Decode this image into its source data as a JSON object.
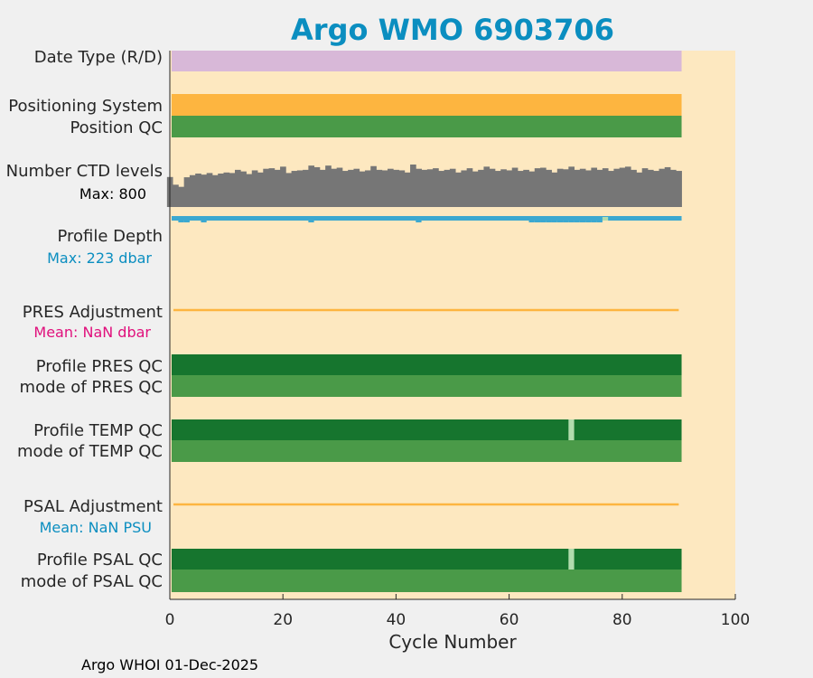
{
  "chart_data": {
    "type": "bar",
    "title": "Argo WMO 6903706",
    "xlabel": "Cycle Number",
    "xlim": [
      0,
      100
    ],
    "xticks": [
      "0",
      "20",
      "40",
      "60",
      "80",
      "100"
    ],
    "last_cycle": 90,
    "footer": "Argo WHOI 01-Dec-2025",
    "colors": {
      "background": "#f0f0f0",
      "panel": "#fde8c0",
      "title": "#0b8ec0",
      "date_type": "#d8b8d8",
      "positioning_system": "#fdb540",
      "qc_good": "#4a9a48",
      "qc_dark": "#16752e",
      "qc_gap": "#b2dcae",
      "ctd_bars": "#767676",
      "profile_depth": "#3ca8d0",
      "adjustment_line": "#fdb540",
      "pres_mean_text": "#e0107c",
      "depth_max_text": "#0b8ec0",
      "psal_mean_text": "#0b8ec0"
    },
    "rows": {
      "date_type": "Date Type (R/D)",
      "positioning_system": "Positioning System",
      "position_qc": "Position QC",
      "ctd_levels": "Number CTD levels",
      "ctd_max": "Max: 800",
      "profile_depth": "Profile Depth",
      "depth_max": "Max:  223 dbar",
      "pres_adjustment": "PRES Adjustment",
      "pres_mean": "Mean:  NaN dbar",
      "profile_pres_qc": "Profile PRES QC",
      "mode_pres_qc": "mode of PRES QC",
      "profile_temp_qc": "Profile TEMP QC",
      "mode_temp_qc": "mode of TEMP QC",
      "psal_adjustment": "PSAL Adjustment",
      "psal_mean": "Mean:  NaN PSU",
      "profile_psal_qc": "Profile PSAL QC",
      "mode_psal_qc": "mode of PSAL QC"
    },
    "ctd_levels": [
      565,
      420,
      380,
      560,
      600,
      630,
      610,
      640,
      600,
      630,
      650,
      640,
      700,
      670,
      620,
      690,
      650,
      720,
      730,
      700,
      760,
      640,
      680,
      690,
      700,
      780,
      750,
      700,
      780,
      720,
      740,
      680,
      700,
      720,
      670,
      690,
      770,
      700,
      690,
      720,
      700,
      690,
      650,
      800,
      720,
      700,
      710,
      730,
      680,
      700,
      720,
      650,
      690,
      730,
      670,
      700,
      760,
      720,
      680,
      710,
      690,
      740,
      680,
      700,
      670,
      730,
      740,
      700,
      650,
      720,
      710,
      760,
      700,
      720,
      690,
      740,
      700,
      730,
      680,
      720,
      740,
      760,
      700,
      650,
      730,
      700,
      680,
      720,
      750,
      700,
      680
    ],
    "gap_cycles": [
      71
    ],
    "depth_dip_cycles": [
      2,
      3,
      6,
      25,
      44,
      64,
      65,
      66,
      67,
      68,
      69,
      70,
      71,
      72,
      73,
      74,
      75,
      76
    ],
    "depth_peak_cycles": [
      77
    ]
  }
}
